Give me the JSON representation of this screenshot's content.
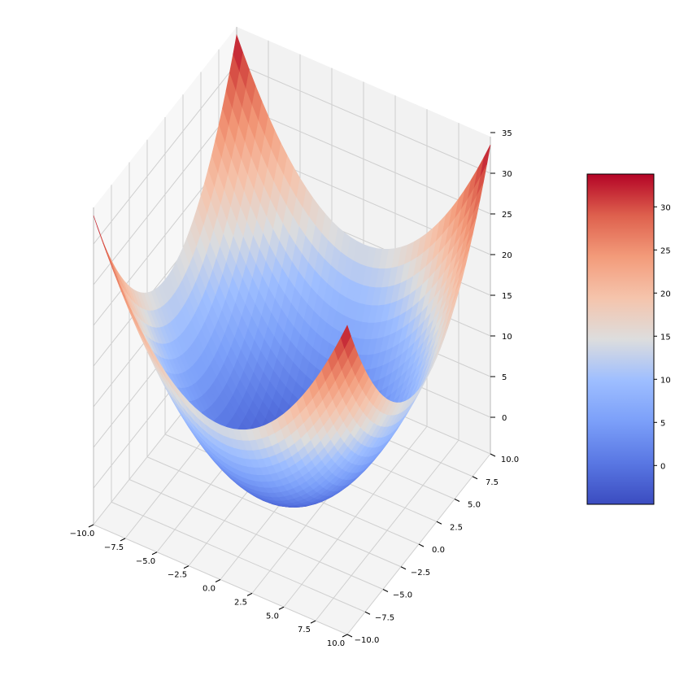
{
  "chart_data": {
    "type": "surface",
    "surface": {
      "x_range": [
        -10,
        10
      ],
      "y_range": [
        -10,
        10
      ],
      "z_at_center": -4.5,
      "z_at_corners": 33.5,
      "colormap": "coolwarm"
    },
    "x_ticks": [
      "−10.0",
      "−7.5",
      "−5.0",
      "−2.5",
      "0.0",
      "2.5",
      "5.0",
      "7.5",
      "10.0"
    ],
    "y_ticks": [
      "−10.0",
      "−7.5",
      "−5.0",
      "−2.5",
      "0.0",
      "2.5",
      "5.0",
      "7.5",
      "10.0"
    ],
    "z_ticks": [
      "0",
      "5",
      "10",
      "15",
      "20",
      "25",
      "30",
      "35"
    ],
    "colorbar": {
      "ticks": [
        "0",
        "5",
        "10",
        "15",
        "20",
        "25",
        "30"
      ],
      "range": [
        -4.5,
        33.8
      ],
      "low_color": "#3b4cc0",
      "mid_color": "#dddddd",
      "high_color": "#b40426"
    },
    "grid": true,
    "pane_color": "#f2f2f2",
    "grid_color": "#cfcfcf"
  }
}
